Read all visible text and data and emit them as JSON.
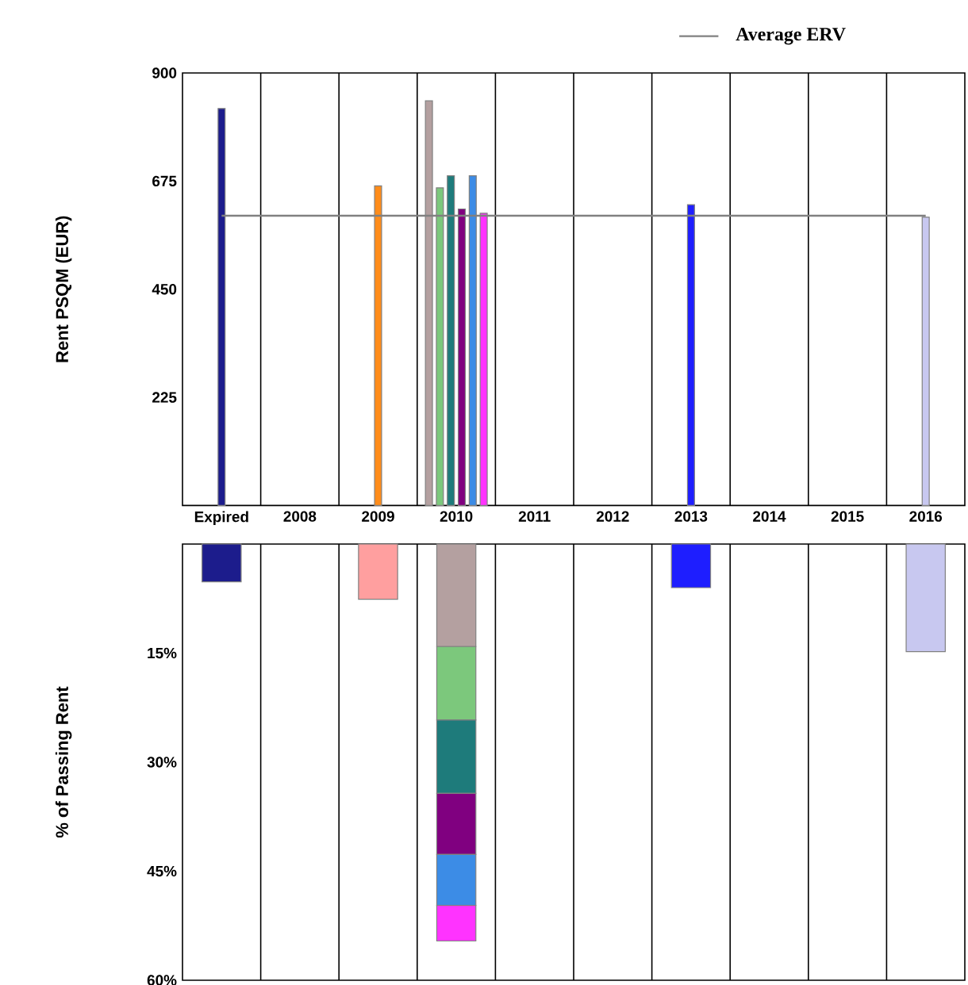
{
  "chart_data": [
    {
      "type": "bar",
      "ylabel": "Rent PSQM (EUR)",
      "categories": [
        "Expired",
        "2008",
        "2009",
        "2010",
        "2011",
        "2012",
        "2013",
        "2014",
        "2015",
        "2016"
      ],
      "series": [
        {
          "color": "#1c1c8c",
          "values": [
            826,
            null,
            null,
            null,
            null,
            null,
            null,
            null,
            null,
            null
          ]
        },
        {
          "color": "#ff8c1a",
          "values": [
            null,
            null,
            665,
            null,
            null,
            null,
            null,
            null,
            null,
            null
          ]
        },
        {
          "color": "#b4a0a0",
          "values": [
            null,
            null,
            null,
            842,
            null,
            null,
            null,
            null,
            null,
            null
          ]
        },
        {
          "color": "#7cc87c",
          "values": [
            null,
            null,
            null,
            661,
            null,
            null,
            null,
            null,
            null,
            null
          ]
        },
        {
          "color": "#1e7b7b",
          "values": [
            null,
            null,
            null,
            686,
            null,
            null,
            null,
            null,
            null,
            null
          ]
        },
        {
          "color": "#800080",
          "values": [
            null,
            null,
            null,
            617,
            null,
            null,
            null,
            null,
            null,
            null
          ]
        },
        {
          "color": "#3c8ce6",
          "values": [
            null,
            null,
            null,
            686,
            null,
            null,
            null,
            null,
            null,
            null
          ]
        },
        {
          "color": "#ff33ff",
          "values": [
            null,
            null,
            null,
            608,
            null,
            null,
            null,
            null,
            null,
            null
          ]
        },
        {
          "color": "#1e1eff",
          "values": [
            null,
            null,
            null,
            null,
            null,
            null,
            626,
            null,
            null,
            null
          ]
        },
        {
          "color": "#c8c8f0",
          "values": [
            null,
            null,
            null,
            null,
            null,
            null,
            null,
            null,
            null,
            600
          ]
        }
      ],
      "ylim": [
        0,
        900
      ],
      "yticks": [
        225,
        450,
        675,
        900
      ],
      "grid": "x",
      "ref_lines": [
        {
          "axis": "y",
          "value": 603,
          "label": "Average ERV",
          "color": "#808080"
        }
      ]
    },
    {
      "type": "bar",
      "stacked": true,
      "ylabel": "% of Passing Rent",
      "categories": [
        null,
        null,
        null,
        null,
        null,
        null,
        null,
        null,
        null,
        null
      ],
      "series": [
        {
          "color": "#1c1c8c",
          "values": [
            5.2,
            null,
            null,
            null,
            null,
            null,
            null,
            null,
            null,
            null
          ]
        },
        {
          "color": "#ff9f9f",
          "values": [
            null,
            null,
            7.6,
            null,
            null,
            null,
            null,
            null,
            null,
            null
          ]
        },
        {
          "color": "#b4a0a0",
          "values": [
            null,
            null,
            null,
            14.1,
            null,
            null,
            null,
            null,
            null,
            null
          ]
        },
        {
          "color": "#7cc87c",
          "values": [
            null,
            null,
            null,
            10.1,
            null,
            null,
            null,
            null,
            null,
            null
          ]
        },
        {
          "color": "#1e7b7b",
          "values": [
            null,
            null,
            null,
            10.1,
            null,
            null,
            null,
            null,
            null,
            null
          ]
        },
        {
          "color": "#800080",
          "values": [
            null,
            null,
            null,
            8.4,
            null,
            null,
            null,
            null,
            null,
            null
          ]
        },
        {
          "color": "#3c8ce6",
          "values": [
            null,
            null,
            null,
            7.0,
            null,
            null,
            null,
            null,
            null,
            null
          ]
        },
        {
          "color": "#ff33ff",
          "values": [
            null,
            null,
            null,
            4.9,
            null,
            null,
            null,
            null,
            null,
            null
          ]
        },
        {
          "color": "#1e1eff",
          "values": [
            null,
            null,
            null,
            null,
            null,
            null,
            6.0,
            null,
            null,
            null
          ]
        },
        {
          "color": "#c8c8f0",
          "values": [
            null,
            null,
            null,
            null,
            null,
            null,
            null,
            null,
            null,
            14.8
          ]
        }
      ],
      "ylim": [
        60,
        0
      ],
      "yticks": [
        {
          "value": 15,
          "label": "15%"
        },
        {
          "value": 30,
          "label": "30%"
        },
        {
          "value": 45,
          "label": "45%"
        },
        {
          "value": 60,
          "label": "60%"
        }
      ],
      "grid": "x",
      "tick_labels": "y"
    }
  ]
}
